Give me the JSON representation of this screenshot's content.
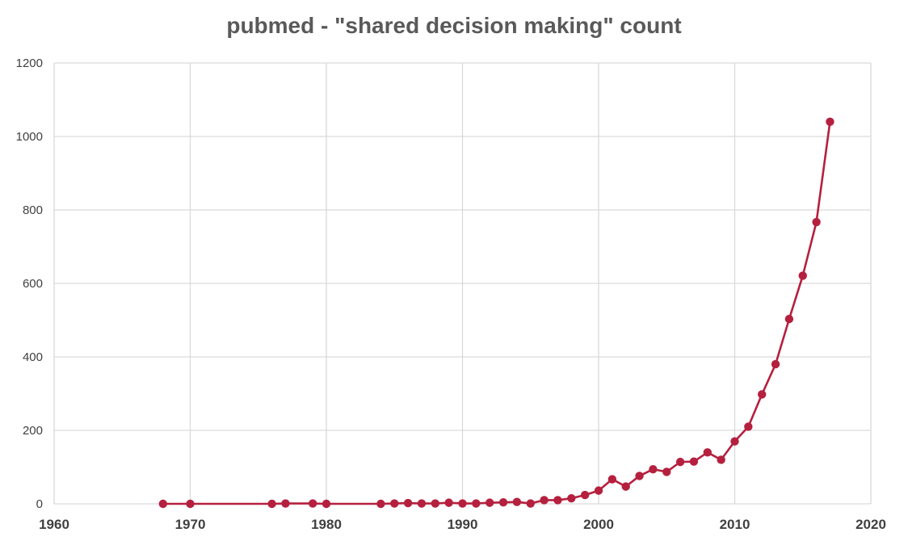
{
  "chart_data": {
    "type": "line",
    "title": "pubmed - \"shared decision making\" count",
    "xlabel": "",
    "ylabel": "",
    "xlim": [
      1960,
      2020
    ],
    "ylim": [
      0,
      1200
    ],
    "x_ticks": [
      1960,
      1970,
      1980,
      1990,
      2000,
      2010,
      2020
    ],
    "y_ticks": [
      0,
      200,
      400,
      600,
      800,
      1000,
      1200
    ],
    "grid": true,
    "line_color": "#b5203f",
    "series": [
      {
        "x": [
          1968,
          1970,
          1976,
          1977,
          1979,
          1980,
          1984,
          1985,
          1986,
          1987,
          1988,
          1989,
          1990,
          1991,
          1992,
          1993,
          1994,
          1995,
          1996,
          1997,
          1998,
          1999,
          2000,
          2001,
          2002,
          2003,
          2004,
          2005,
          2006,
          2007,
          2008,
          2009,
          2010,
          2011,
          2012,
          2013,
          2014,
          2015,
          2016,
          2017
        ],
        "y": [
          0,
          0,
          0,
          1,
          1,
          0,
          0,
          1,
          2,
          1,
          1,
          3,
          1,
          1,
          3,
          4,
          5,
          1,
          10,
          10,
          15,
          24,
          36,
          67,
          47,
          76,
          94,
          87,
          114,
          115,
          140,
          120,
          170,
          210,
          298,
          380,
          503,
          621,
          767,
          1040
        ]
      }
    ]
  }
}
